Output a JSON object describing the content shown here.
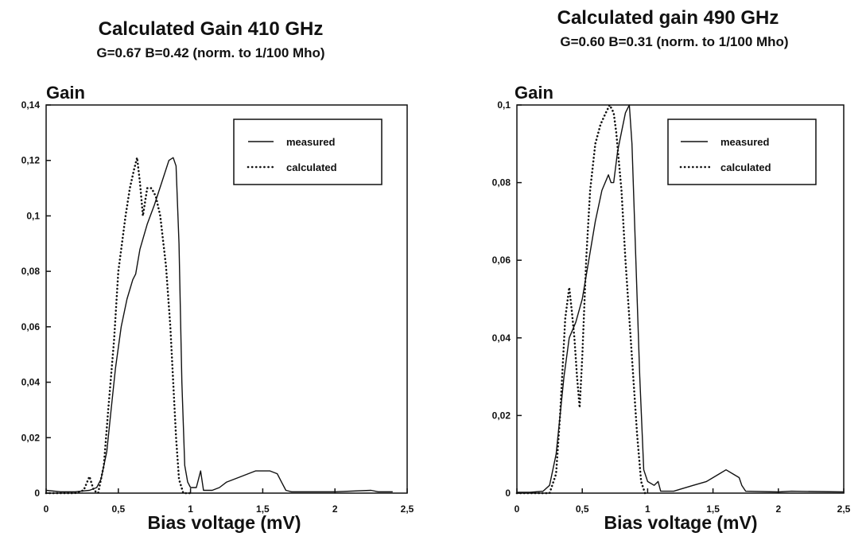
{
  "chart_data": [
    {
      "type": "line",
      "title": "Calculated Gain 410 GHz",
      "subtitle": "G=0.67  B=0.42 (norm. to 1/100 Mho)",
      "ylabel": "Gain",
      "xlabel": "Bias voltage (mV)",
      "xlim": [
        0,
        2.5
      ],
      "ylim": [
        0,
        0.14
      ],
      "x_ticks": [
        0,
        0.5,
        1,
        1.5,
        2,
        2.5
      ],
      "x_tick_labels": [
        "0",
        "0,5",
        "1",
        "1,5",
        "2",
        "2,5"
      ],
      "y_ticks": [
        0,
        0.02,
        0.04,
        0.06,
        0.08,
        0.1,
        0.12,
        0.14
      ],
      "y_tick_labels": [
        "0",
        "0,02",
        "0,04",
        "0,06",
        "0,08",
        "0,1",
        "0,12",
        "0,14"
      ],
      "grid": false,
      "legend": "top-right",
      "series": [
        {
          "name": "measured",
          "style": "solid",
          "points": [
            [
              0,
              0.001
            ],
            [
              0.1,
              0.0005
            ],
            [
              0.2,
              0.0005
            ],
            [
              0.3,
              0.001
            ],
            [
              0.35,
              0.002
            ],
            [
              0.38,
              0.005
            ],
            [
              0.42,
              0.015
            ],
            [
              0.45,
              0.03
            ],
            [
              0.48,
              0.045
            ],
            [
              0.52,
              0.06
            ],
            [
              0.56,
              0.07
            ],
            [
              0.6,
              0.077
            ],
            [
              0.62,
              0.079
            ],
            [
              0.65,
              0.088
            ],
            [
              0.7,
              0.097
            ],
            [
              0.75,
              0.104
            ],
            [
              0.8,
              0.112
            ],
            [
              0.85,
              0.12
            ],
            [
              0.88,
              0.121
            ],
            [
              0.9,
              0.118
            ],
            [
              0.92,
              0.09
            ],
            [
              0.94,
              0.04
            ],
            [
              0.96,
              0.01
            ],
            [
              0.98,
              0.004
            ],
            [
              1.0,
              0.002
            ],
            [
              1.04,
              0.002
            ],
            [
              1.07,
              0.008
            ],
            [
              1.09,
              0.001
            ],
            [
              1.15,
              0.001
            ],
            [
              1.2,
              0.002
            ],
            [
              1.25,
              0.004
            ],
            [
              1.3,
              0.005
            ],
            [
              1.35,
              0.006
            ],
            [
              1.4,
              0.007
            ],
            [
              1.45,
              0.008
            ],
            [
              1.5,
              0.008
            ],
            [
              1.55,
              0.008
            ],
            [
              1.6,
              0.007
            ],
            [
              1.63,
              0.004
            ],
            [
              1.66,
              0.001
            ],
            [
              1.7,
              0.0005
            ],
            [
              2.0,
              0.0005
            ],
            [
              2.25,
              0.001
            ],
            [
              2.3,
              0.0005
            ],
            [
              2.4,
              0.0005
            ]
          ]
        },
        {
          "name": "calculated",
          "style": "dotted",
          "points": [
            [
              0,
              0
            ],
            [
              0.2,
              0
            ],
            [
              0.26,
              0.001
            ],
            [
              0.3,
              0.006
            ],
            [
              0.33,
              0.001
            ],
            [
              0.36,
              0
            ],
            [
              0.4,
              0.01
            ],
            [
              0.43,
              0.03
            ],
            [
              0.47,
              0.055
            ],
            [
              0.5,
              0.08
            ],
            [
              0.55,
              0.1
            ],
            [
              0.58,
              0.11
            ],
            [
              0.61,
              0.117
            ],
            [
              0.63,
              0.121
            ],
            [
              0.65,
              0.112
            ],
            [
              0.67,
              0.1
            ],
            [
              0.7,
              0.11
            ],
            [
              0.73,
              0.11
            ],
            [
              0.76,
              0.107
            ],
            [
              0.79,
              0.1
            ],
            [
              0.83,
              0.082
            ],
            [
              0.86,
              0.06
            ],
            [
              0.88,
              0.04
            ],
            [
              0.9,
              0.02
            ],
            [
              0.92,
              0.005
            ],
            [
              0.95,
              0
            ],
            [
              1.0,
              0
            ]
          ]
        }
      ]
    },
    {
      "type": "line",
      "title": "Calculated gain 490 GHz",
      "subtitle": "G=0.60  B=0.31  (norm. to 1/100 Mho)",
      "ylabel": "Gain",
      "xlabel": "Bias voltage (mV)",
      "xlim": [
        0,
        2.5
      ],
      "ylim": [
        0,
        0.1
      ],
      "x_ticks": [
        0,
        0.5,
        1,
        1.5,
        2,
        2.5
      ],
      "x_tick_labels": [
        "0",
        "0,5",
        "1",
        "1,5",
        "2",
        "2,5"
      ],
      "y_ticks": [
        0,
        0.02,
        0.04,
        0.06,
        0.08,
        0.1
      ],
      "y_tick_labels": [
        "0",
        "0,02",
        "0,04",
        "0,06",
        "0,08",
        "0,1"
      ],
      "grid": false,
      "legend": "top-right",
      "series": [
        {
          "name": "measured",
          "style": "solid",
          "points": [
            [
              0,
              0.0002
            ],
            [
              0.1,
              0.0002
            ],
            [
              0.2,
              0.0005
            ],
            [
              0.25,
              0.002
            ],
            [
              0.3,
              0.01
            ],
            [
              0.33,
              0.02
            ],
            [
              0.36,
              0.03
            ],
            [
              0.4,
              0.04
            ],
            [
              0.45,
              0.044
            ],
            [
              0.5,
              0.05
            ],
            [
              0.55,
              0.06
            ],
            [
              0.6,
              0.07
            ],
            [
              0.65,
              0.078
            ],
            [
              0.7,
              0.082
            ],
            [
              0.72,
              0.08
            ],
            [
              0.74,
              0.08
            ],
            [
              0.77,
              0.088
            ],
            [
              0.8,
              0.093
            ],
            [
              0.83,
              0.098
            ],
            [
              0.86,
              0.1
            ],
            [
              0.88,
              0.09
            ],
            [
              0.91,
              0.06
            ],
            [
              0.94,
              0.03
            ],
            [
              0.97,
              0.006
            ],
            [
              1.0,
              0.003
            ],
            [
              1.05,
              0.002
            ],
            [
              1.08,
              0.003
            ],
            [
              1.1,
              0.0005
            ],
            [
              1.2,
              0.0005
            ],
            [
              1.25,
              0.001
            ],
            [
              1.35,
              0.002
            ],
            [
              1.45,
              0.003
            ],
            [
              1.55,
              0.005
            ],
            [
              1.6,
              0.006
            ],
            [
              1.65,
              0.005
            ],
            [
              1.7,
              0.004
            ],
            [
              1.72,
              0.002
            ],
            [
              1.75,
              0.0005
            ],
            [
              2.0,
              0.0003
            ],
            [
              2.1,
              0.0005
            ],
            [
              2.5,
              0.0003
            ]
          ]
        },
        {
          "name": "calculated",
          "style": "dotted",
          "points": [
            [
              0,
              0
            ],
            [
              0.25,
              0
            ],
            [
              0.3,
              0.005
            ],
            [
              0.33,
              0.02
            ],
            [
              0.37,
              0.045
            ],
            [
              0.4,
              0.053
            ],
            [
              0.42,
              0.047
            ],
            [
              0.44,
              0.04
            ],
            [
              0.46,
              0.03
            ],
            [
              0.48,
              0.022
            ],
            [
              0.5,
              0.035
            ],
            [
              0.53,
              0.06
            ],
            [
              0.56,
              0.078
            ],
            [
              0.6,
              0.09
            ],
            [
              0.64,
              0.095
            ],
            [
              0.68,
              0.098
            ],
            [
              0.71,
              0.1
            ],
            [
              0.74,
              0.098
            ],
            [
              0.76,
              0.093
            ],
            [
              0.8,
              0.078
            ],
            [
              0.83,
              0.06
            ],
            [
              0.86,
              0.045
            ],
            [
              0.89,
              0.03
            ],
            [
              0.92,
              0.015
            ],
            [
              0.95,
              0.003
            ],
            [
              0.98,
              0
            ],
            [
              1.0,
              0
            ]
          ]
        }
      ]
    }
  ]
}
